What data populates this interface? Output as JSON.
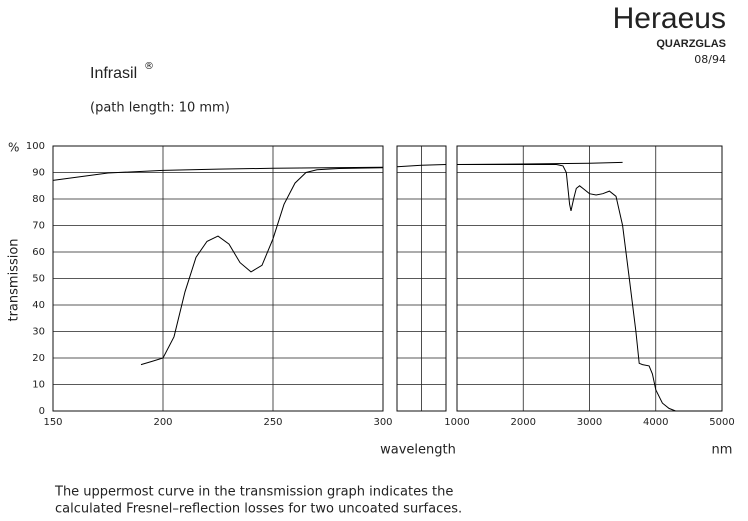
{
  "header": {
    "brand": "Heraeus",
    "division": "QUARZGLAS",
    "date": "08/94",
    "product": "Infrasil",
    "product_mark": "®",
    "subtitle": "(path length: 10 mm)"
  },
  "note": [
    "The uppermost curve in the transmission graph indicates the",
    "calculated Fresnel–reflection losses for two uncoated surfaces."
  ],
  "chart_data": [
    {
      "type": "line",
      "y_unit": "%",
      "y_label": "transmission",
      "xlim": [
        150,
        300
      ],
      "xticks": [
        150,
        200,
        250,
        300
      ],
      "ylim": [
        0,
        100
      ],
      "yticks": [
        0,
        10,
        20,
        30,
        40,
        50,
        60,
        70,
        80,
        90,
        100
      ],
      "grid": true,
      "series": [
        {
          "color": "#000000",
          "x": [
            150,
            175,
            200,
            225,
            250,
            275,
            300
          ],
          "values": [
            87,
            89.8,
            90.8,
            91.3,
            91.6,
            91.8,
            92
          ]
        },
        {
          "color": "#000000",
          "x": [
            190,
            195,
            200,
            205,
            210,
            215,
            220,
            225,
            230,
            235,
            240,
            245,
            250,
            255,
            260,
            265,
            270,
            280,
            300
          ],
          "values": [
            17.5,
            18.7,
            20,
            28,
            45,
            58,
            64,
            66,
            63,
            56,
            52.5,
            55,
            65,
            78,
            86,
            90,
            91,
            91.5,
            91.8
          ]
        }
      ]
    },
    {
      "type": "line",
      "xlim": [
        300,
        1000
      ],
      "ylim": [
        0,
        100
      ],
      "grid": true,
      "series": [
        {
          "color": "#000000",
          "x": [
            300,
            650,
            1000
          ],
          "values": [
            92.2,
            92.7,
            93
          ]
        }
      ]
    },
    {
      "type": "line",
      "x_label": "wavelength",
      "x_unit": "nm",
      "xlim": [
        1000,
        5000
      ],
      "xticks": [
        1000,
        2000,
        3000,
        4000,
        5000
      ],
      "ylim": [
        0,
        100
      ],
      "grid": true,
      "series": [
        {
          "color": "#000000",
          "x": [
            1000,
            2000,
            3000,
            3500
          ],
          "values": [
            93,
            93.2,
            93.5,
            93.8
          ]
        },
        {
          "color": "#000000",
          "x": [
            1000,
            2500,
            2600,
            2650,
            2700,
            2720,
            2760,
            2800,
            2850,
            2900,
            3000,
            3100,
            3200,
            3300,
            3400,
            3500,
            3600,
            3700,
            3750,
            3800,
            3900,
            3950,
            4000,
            4100,
            4200,
            4300,
            5000
          ],
          "values": [
            93,
            93,
            92.5,
            90,
            78,
            75.5,
            80,
            84,
            85,
            84,
            82,
            81.5,
            82,
            83,
            81,
            70,
            50,
            30,
            18,
            17.5,
            17,
            14,
            8,
            3,
            1,
            0,
            0
          ]
        }
      ]
    }
  ]
}
